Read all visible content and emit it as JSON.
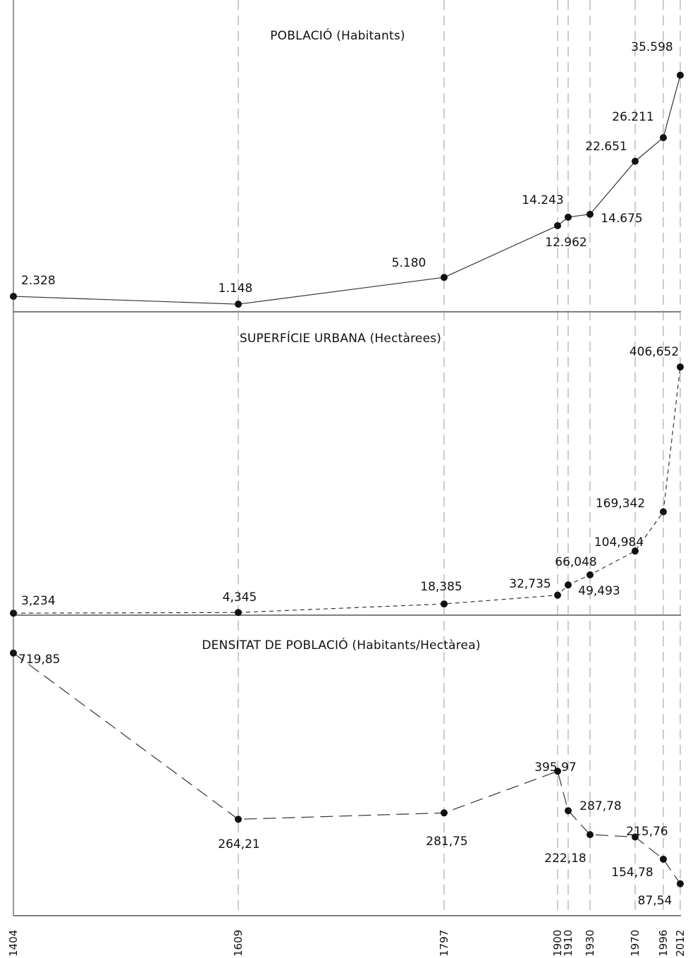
{
  "chart_data": {
    "type": "line",
    "x": [
      "1404",
      "1609",
      "1797",
      "1900",
      "1910",
      "1930",
      "1970",
      "1996",
      "2012"
    ],
    "grid": "vertical dashed lines at each year",
    "panels": [
      {
        "title": "POBLACIÓ (Habitants)",
        "line_style": "solid",
        "values": [
          2328,
          1148,
          5180,
          12962,
          14243,
          14675,
          22651,
          26211,
          35598
        ],
        "labels": [
          "2.328",
          "1.148",
          "5.180",
          "12.962",
          "14.243",
          "14.675",
          "22.651",
          "26.211",
          "35.598"
        ],
        "ylim": [
          0,
          38000
        ]
      },
      {
        "title": "SUPERFÍCIE URBANA (Hectàrees)",
        "line_style": "dashed",
        "values": [
          3.234,
          4.345,
          18.385,
          32.735,
          49.493,
          66.048,
          104.984,
          169.342,
          406.652
        ],
        "labels": [
          "3,234",
          "4,345",
          "18,385",
          "32,735",
          "49,493",
          "66,048",
          "104,984",
          "169,342",
          "406,652"
        ],
        "ylim": [
          0,
          430
        ]
      },
      {
        "title": "DENSITAT DE POBLACIÓ (Habitants/Hectàrea)",
        "line_style": "long-dashed",
        "values": [
          719.85,
          264.21,
          281.75,
          395.97,
          287.78,
          222.18,
          215.76,
          154.78,
          87.54
        ],
        "labels": [
          "719,85",
          "264,21",
          "281,75",
          "395,97",
          "287,78",
          "222,18",
          "215,76",
          "154,78",
          "87,54"
        ],
        "ylim": [
          0,
          760
        ]
      }
    ]
  }
}
